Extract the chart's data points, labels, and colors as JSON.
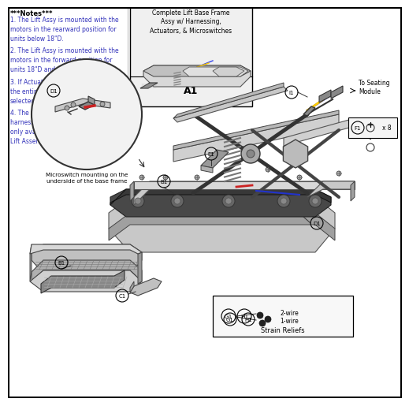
{
  "bg_color": "#ffffff",
  "border_color": "#000000",
  "text_color": "#3333bb",
  "dark_text": "#000000",
  "gray1": "#c8c8c8",
  "gray2": "#a0a0a0",
  "gray3": "#787878",
  "gray4": "#505050",
  "gray5": "#e8e8e8",
  "notes_title": "***Notes***",
  "notes": [
    "1. The Lift Assy is mounted with the\nmotors in the rearward position for\nunits below 18\"D.",
    "2. The Lift Assy is mounted with the\nmotors in the forward position for\nunits 18\"D and above.",
    "3. If Actuator replacement is required,\nthe entire Lift Assy, A1, must be\nselected.",
    "4. The PCB Assy contains the board,\nharnessing and microswitches. It is\nonly available with the complete\nLift Assembly, A1."
  ],
  "callout_box_title": "Complete Lift Base Frame\nAssy w/ Harnessing,\nActuators, & Microswitches",
  "callout_box_part": "A1",
  "circle_caption": "Microswitch mounting on the\nunderside of the base frame",
  "strain_relief_label": "Strain Reliefs",
  "to_seating_label": "To Seating\nModule",
  "f1_label": "x 8",
  "wire_labels": [
    "2-wire",
    "1-wire"
  ]
}
